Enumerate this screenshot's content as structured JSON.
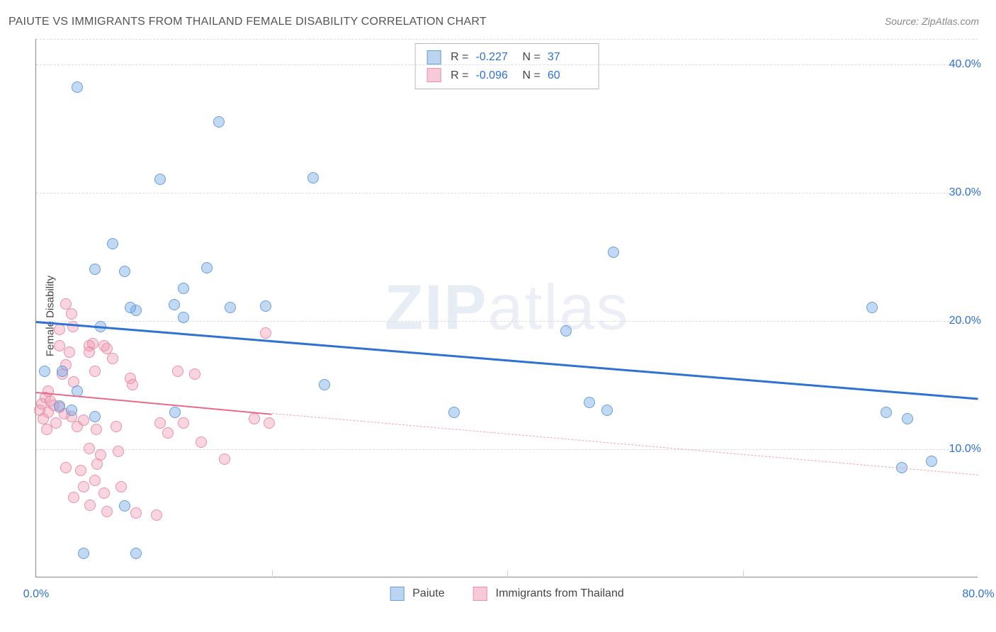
{
  "title": "PAIUTE VS IMMIGRANTS FROM THAILAND FEMALE DISABILITY CORRELATION CHART",
  "source": "Source: ZipAtlas.com",
  "ylabel": "Female Disability",
  "watermark": {
    "bold": "ZIP",
    "light": "atlas"
  },
  "chart": {
    "type": "scatter",
    "xlim": [
      0,
      80
    ],
    "ylim": [
      0,
      42
    ],
    "y_ticks": [
      10,
      20,
      30,
      40
    ],
    "y_tick_labels": [
      "10.0%",
      "20.0%",
      "30.0%",
      "40.0%"
    ],
    "x_ticks_minor": [
      20,
      40,
      60
    ],
    "x_tick_labels": {
      "0": "0.0%",
      "80": "80.0%"
    },
    "grid_color": "#dddddd",
    "axis_color": "#888888",
    "background_color": "#ffffff"
  },
  "series": {
    "paiute": {
      "label": "Paiute",
      "color_fill": "rgba(120,170,230,0.45)",
      "color_stroke": "#6a9edb",
      "marker_size": 16,
      "points": [
        [
          3.5,
          38.2
        ],
        [
          15.5,
          35.5
        ],
        [
          10.5,
          31.0
        ],
        [
          23.5,
          31.1
        ],
        [
          6.5,
          26.0
        ],
        [
          5.0,
          24.0
        ],
        [
          7.5,
          23.8
        ],
        [
          14.5,
          24.1
        ],
        [
          8.5,
          20.8
        ],
        [
          12.5,
          22.5
        ],
        [
          8.0,
          21.0
        ],
        [
          11.7,
          21.2
        ],
        [
          16.5,
          21.0
        ],
        [
          19.5,
          21.1
        ],
        [
          12.5,
          20.2
        ],
        [
          5.5,
          19.5
        ],
        [
          0.7,
          16.0
        ],
        [
          2.2,
          16.0
        ],
        [
          3.5,
          14.5
        ],
        [
          11.8,
          12.8
        ],
        [
          24.5,
          15.0
        ],
        [
          35.5,
          12.8
        ],
        [
          45.0,
          19.2
        ],
        [
          49.0,
          25.3
        ],
        [
          47.0,
          13.6
        ],
        [
          48.5,
          13.0
        ],
        [
          71.0,
          21.0
        ],
        [
          72.2,
          12.8
        ],
        [
          74.0,
          12.3
        ],
        [
          73.5,
          8.5
        ],
        [
          76.0,
          9.0
        ],
        [
          7.5,
          5.5
        ],
        [
          4.0,
          1.8
        ],
        [
          8.5,
          1.8
        ],
        [
          2.0,
          13.3
        ],
        [
          3.0,
          13.0
        ],
        [
          5.0,
          12.5
        ]
      ],
      "trend": {
        "x1": 0,
        "y1": 20.0,
        "x2": 80,
        "y2": 14.0,
        "color": "#2e72d2",
        "width": 3
      }
    },
    "thailand": {
      "label": "Immigrants from Thailand",
      "color_fill": "rgba(240,150,175,0.40)",
      "color_stroke": "#e990aa",
      "marker_size": 16,
      "points": [
        [
          2.5,
          21.3
        ],
        [
          3.0,
          20.5
        ],
        [
          2.0,
          19.3
        ],
        [
          3.1,
          19.5
        ],
        [
          2.0,
          18.0
        ],
        [
          4.5,
          18.0
        ],
        [
          2.8,
          17.5
        ],
        [
          4.8,
          18.2
        ],
        [
          2.5,
          16.5
        ],
        [
          5.8,
          18.0
        ],
        [
          4.5,
          17.5
        ],
        [
          6.0,
          17.8
        ],
        [
          2.2,
          15.8
        ],
        [
          5.0,
          16.0
        ],
        [
          6.5,
          17.0
        ],
        [
          3.2,
          15.2
        ],
        [
          8.0,
          15.5
        ],
        [
          12.0,
          16.0
        ],
        [
          13.5,
          15.8
        ],
        [
          1.0,
          14.5
        ],
        [
          0.8,
          14.0
        ],
        [
          1.2,
          13.7
        ],
        [
          0.5,
          13.5
        ],
        [
          1.5,
          13.4
        ],
        [
          0.3,
          13.0
        ],
        [
          2.0,
          13.2
        ],
        [
          1.0,
          12.8
        ],
        [
          2.4,
          12.7
        ],
        [
          0.6,
          12.3
        ],
        [
          3.0,
          12.5
        ],
        [
          1.7,
          12.0
        ],
        [
          4.0,
          12.2
        ],
        [
          0.9,
          11.5
        ],
        [
          3.5,
          11.7
        ],
        [
          5.1,
          11.5
        ],
        [
          6.8,
          11.7
        ],
        [
          19.5,
          19.0
        ],
        [
          10.5,
          12.0
        ],
        [
          11.2,
          11.2
        ],
        [
          12.5,
          12.0
        ],
        [
          18.5,
          12.3
        ],
        [
          19.8,
          12.0
        ],
        [
          14.0,
          10.5
        ],
        [
          16.0,
          9.2
        ],
        [
          4.5,
          10.0
        ],
        [
          5.2,
          8.8
        ],
        [
          3.8,
          8.3
        ],
        [
          5.5,
          9.5
        ],
        [
          4.0,
          7.0
        ],
        [
          5.0,
          7.5
        ],
        [
          5.8,
          6.5
        ],
        [
          7.2,
          7.0
        ],
        [
          8.5,
          5.0
        ],
        [
          10.2,
          4.8
        ],
        [
          6.0,
          5.1
        ],
        [
          3.2,
          6.2
        ],
        [
          4.6,
          5.6
        ],
        [
          2.5,
          8.5
        ],
        [
          7.0,
          9.8
        ],
        [
          8.2,
          15.0
        ]
      ],
      "trend_solid": {
        "x1": 0,
        "y1": 14.5,
        "x2": 20,
        "y2": 12.8,
        "color": "#e86a8a",
        "width": 2.5
      },
      "trend_dash": {
        "x1": 20,
        "y1": 12.8,
        "x2": 80,
        "y2": 8.0,
        "color": "#f0a5b8",
        "width": 1.5
      }
    }
  },
  "stats": [
    {
      "swatch": "blue",
      "r_label": "R =",
      "r": "-0.227",
      "n_label": "N =",
      "n": "37"
    },
    {
      "swatch": "pink",
      "r_label": "R =",
      "r": "-0.096",
      "n_label": "N =",
      "n": "60"
    }
  ],
  "legend": [
    {
      "swatch": "blue",
      "label": "Paiute"
    },
    {
      "swatch": "pink",
      "label": "Immigrants from Thailand"
    }
  ],
  "typography": {
    "title_fontsize": 16,
    "label_fontsize": 15,
    "tick_fontsize": 16,
    "tick_color": "#2e72d2"
  }
}
